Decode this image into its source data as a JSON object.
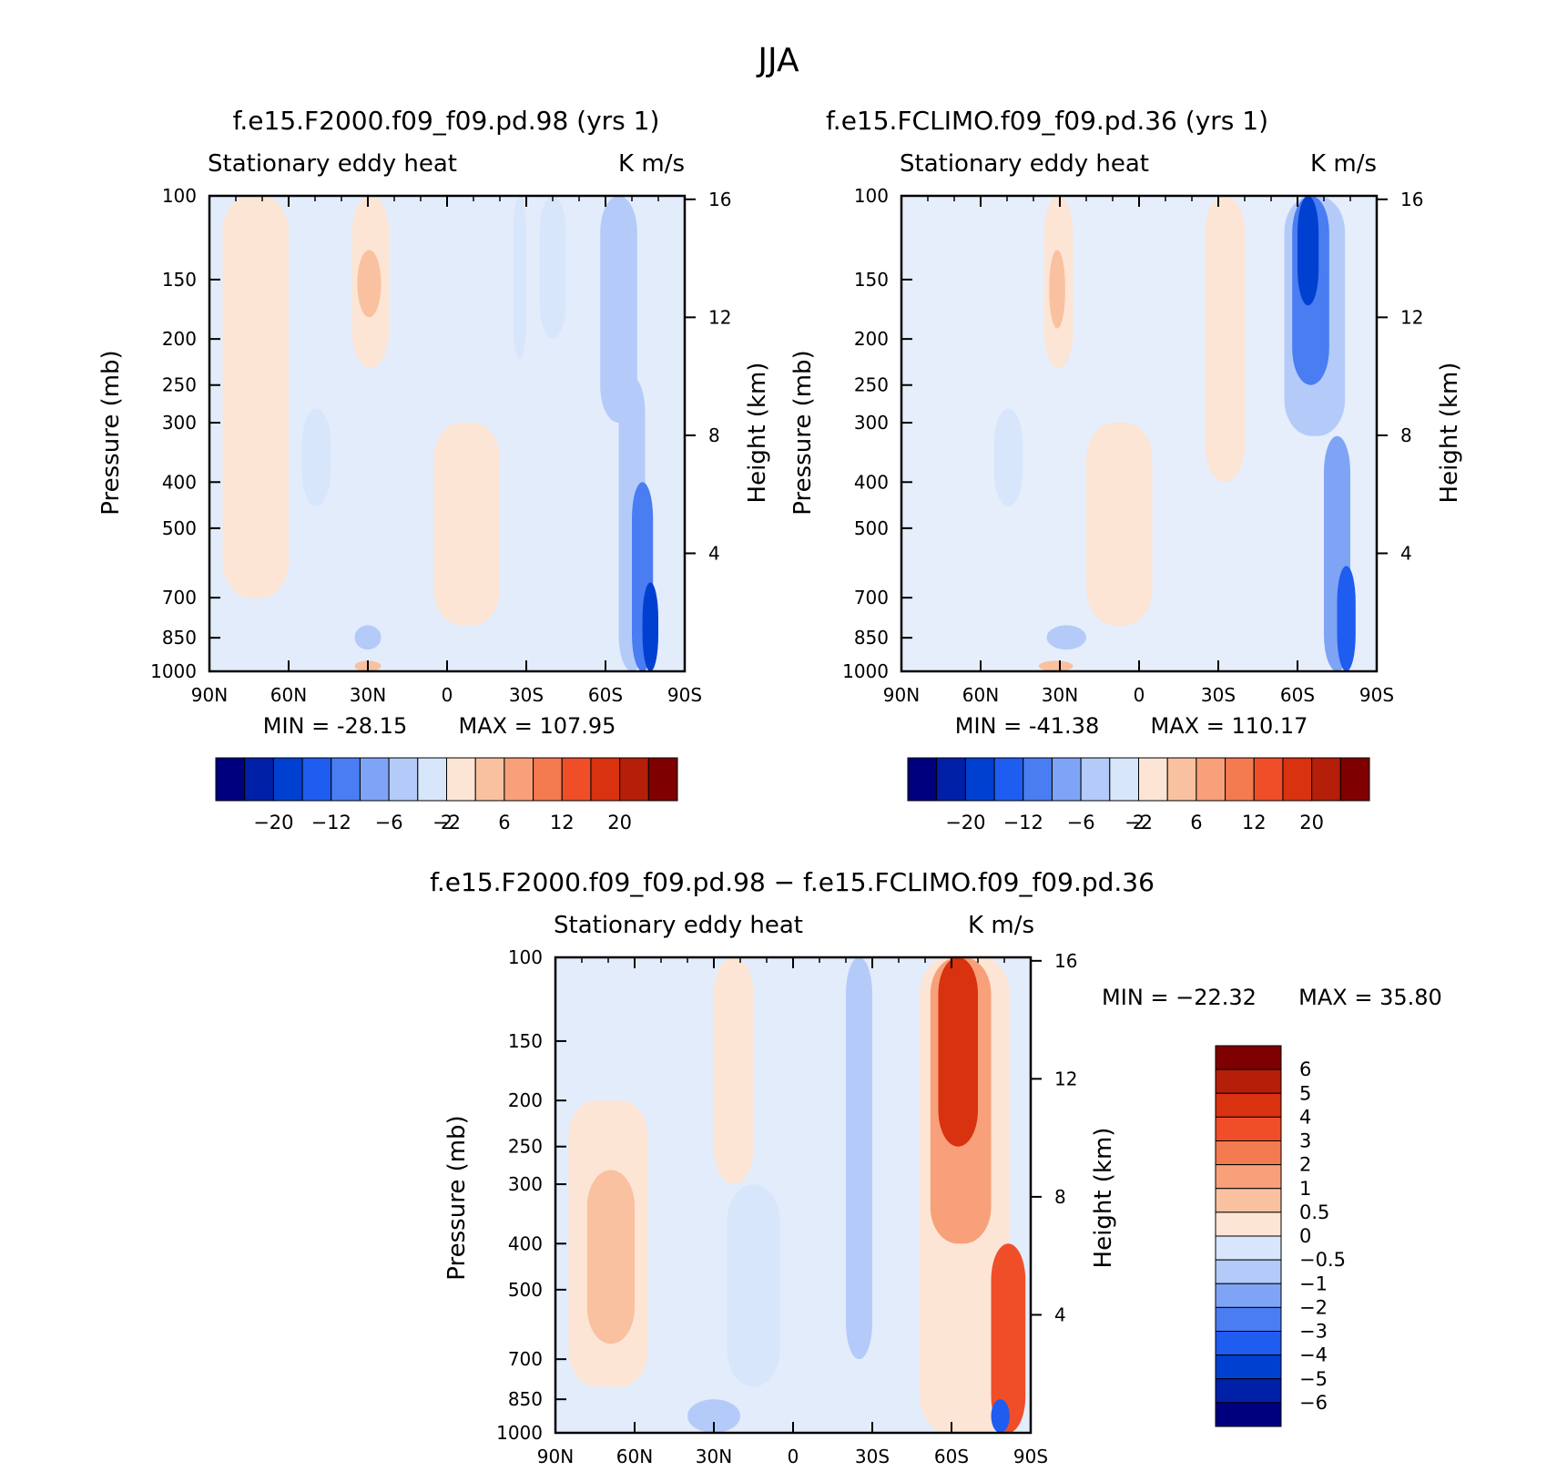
{
  "figure_title": "JJA",
  "chart_data": [
    {
      "type": "heatmap",
      "id": "panel1",
      "title": "f.e15.F2000.f09_f09.pd.98 (yrs 1)",
      "left_label": "Stationary eddy heat",
      "right_label": "K m/s",
      "ylabel": "Pressure (mb)",
      "ylabel2": "Height (km)",
      "x_ticks": [
        "90N",
        "60N",
        "30N",
        "0",
        "30S",
        "60S",
        "90S"
      ],
      "y_ticks": [
        "100",
        "150",
        "200",
        "250",
        "300",
        "400",
        "500",
        "700",
        "850",
        "1000"
      ],
      "height_ticks": [
        "16",
        "12",
        "8",
        "4"
      ],
      "min_label": "MIN = -28.15",
      "max_label": "MAX = 107.95",
      "min": -28.15,
      "max": 107.95,
      "colorbar_labels": [
        "-20",
        "-12",
        "-6",
        "-2",
        "2",
        "6",
        "12",
        "20"
      ],
      "fields": [
        {
          "lat": [
            -75,
            -65
          ],
          "p": [
            240,
            1000
          ],
          "level": -2
        },
        {
          "lat": [
            -78,
            -70
          ],
          "p": [
            400,
            1000
          ],
          "level": -4
        },
        {
          "lat": [
            -80,
            -74
          ],
          "p": [
            650,
            1000
          ],
          "level": -6
        },
        {
          "lat": [
            -72,
            -58
          ],
          "p": [
            100,
            300
          ],
          "level": -2
        },
        {
          "lat": [
            -45,
            -35
          ],
          "p": [
            100,
            200
          ],
          "level": -1
        },
        {
          "lat": [
            -30,
            -25
          ],
          "p": [
            100,
            220
          ],
          "level": -1
        },
        {
          "lat": [
            22,
            36
          ],
          "p": [
            100,
            230
          ],
          "level": 1
        },
        {
          "lat": [
            25,
            34
          ],
          "p": [
            130,
            180
          ],
          "level": 2
        },
        {
          "lat": [
            44,
            55
          ],
          "p": [
            280,
            450
          ],
          "level": -1
        },
        {
          "lat": [
            25,
            35
          ],
          "p": [
            800,
            900
          ],
          "level": -2
        },
        {
          "lat": [
            25,
            35
          ],
          "p": [
            950,
            1000
          ],
          "level": 2
        },
        {
          "lat": [
            60,
            85
          ],
          "p": [
            100,
            700
          ],
          "level": 1
        },
        {
          "lat": [
            -20,
            5
          ],
          "p": [
            300,
            800
          ],
          "level": 1
        }
      ]
    },
    {
      "type": "heatmap",
      "id": "panel2",
      "title": "f.e15.FCLIMO.f09_f09.pd.36 (yrs 1)",
      "left_label": "Stationary eddy heat",
      "right_label": "K m/s",
      "ylabel": "Pressure (mb)",
      "ylabel2": "Height (km)",
      "x_ticks": [
        "90N",
        "60N",
        "30N",
        "0",
        "30S",
        "60S",
        "90S"
      ],
      "y_ticks": [
        "100",
        "150",
        "200",
        "250",
        "300",
        "400",
        "500",
        "700",
        "850",
        "1000"
      ],
      "height_ticks": [
        "16",
        "12",
        "8",
        "4"
      ],
      "min_label": "MIN = -41.38",
      "max_label": "MAX = 110.17",
      "min": -41.38,
      "max": 110.17,
      "colorbar_labels": [
        "-20",
        "-12",
        "-6",
        "-2",
        "2",
        "6",
        "12",
        "20"
      ],
      "fields": [
        {
          "lat": [
            -78,
            -55
          ],
          "p": [
            100,
            320
          ],
          "level": -2
        },
        {
          "lat": [
            -72,
            -58
          ],
          "p": [
            100,
            250
          ],
          "level": -4
        },
        {
          "lat": [
            -68,
            -60
          ],
          "p": [
            100,
            170
          ],
          "level": -6
        },
        {
          "lat": [
            -80,
            -70
          ],
          "p": [
            320,
            1000
          ],
          "level": -3
        },
        {
          "lat": [
            -82,
            -75
          ],
          "p": [
            600,
            1000
          ],
          "level": -5
        },
        {
          "lat": [
            25,
            36
          ],
          "p": [
            100,
            230
          ],
          "level": 1
        },
        {
          "lat": [
            28,
            34
          ],
          "p": [
            130,
            190
          ],
          "level": 2
        },
        {
          "lat": [
            44,
            55
          ],
          "p": [
            280,
            450
          ],
          "level": -1
        },
        {
          "lat": [
            20,
            35
          ],
          "p": [
            800,
            900
          ],
          "level": -2
        },
        {
          "lat": [
            25,
            38
          ],
          "p": [
            950,
            1000
          ],
          "level": 2
        },
        {
          "lat": [
            -5,
            20
          ],
          "p": [
            300,
            800
          ],
          "level": 1
        },
        {
          "lat": [
            -40,
            -25
          ],
          "p": [
            100,
            400
          ],
          "level": 1
        }
      ]
    },
    {
      "type": "heatmap",
      "id": "panel3",
      "title": "f.e15.F2000.f09_f09.pd.98 − f.e15.FCLIMO.f09_f09.pd.36",
      "left_label": "Stationary eddy heat",
      "right_label": "K m/s",
      "ylabel": "Pressure (mb)",
      "ylabel2": "Height (km)",
      "x_ticks": [
        "90N",
        "60N",
        "30N",
        "0",
        "30S",
        "60S",
        "90S"
      ],
      "y_ticks": [
        "100",
        "150",
        "200",
        "250",
        "300",
        "400",
        "500",
        "700",
        "850",
        "1000"
      ],
      "height_ticks": [
        "16",
        "12",
        "8",
        "4"
      ],
      "min_label": "MIN = −22.32",
      "max_label": "MAX =   35.80",
      "min": -22.32,
      "max": 35.8,
      "colorbar_labels": [
        "6",
        "5",
        "4",
        "3",
        "2",
        "1",
        "0.5",
        "0",
        "−0.5",
        "−1",
        "−2",
        "−3",
        "−4",
        "−5",
        "−6"
      ],
      "fields": [
        {
          "lat": [
            -82,
            -48
          ],
          "p": [
            100,
            1000
          ],
          "level": 1
        },
        {
          "lat": [
            -75,
            -52
          ],
          "p": [
            100,
            400
          ],
          "level": 3
        },
        {
          "lat": [
            -70,
            -55
          ],
          "p": [
            100,
            250
          ],
          "level": 6
        },
        {
          "lat": [
            -88,
            -75
          ],
          "p": [
            400,
            1000
          ],
          "level": 5
        },
        {
          "lat": [
            -82,
            -75
          ],
          "p": [
            850,
            1000
          ],
          "level": -5
        },
        {
          "lat": [
            55,
            85
          ],
          "p": [
            200,
            800
          ],
          "level": 1
        },
        {
          "lat": [
            60,
            78
          ],
          "p": [
            280,
            650
          ],
          "level": 2
        },
        {
          "lat": [
            15,
            30
          ],
          "p": [
            100,
            300
          ],
          "level": 1
        },
        {
          "lat": [
            -30,
            -20
          ],
          "p": [
            100,
            700
          ],
          "level": -2
        },
        {
          "lat": [
            20,
            40
          ],
          "p": [
            850,
            1000
          ],
          "level": -2
        },
        {
          "lat": [
            5,
            25
          ],
          "p": [
            300,
            800
          ],
          "level": -1
        }
      ]
    }
  ],
  "colors": {
    "blues": [
      "#00007f",
      "#0020a8",
      "#0040d0",
      "#1f5cf0",
      "#4a7df2",
      "#7fa4f5",
      "#b4cbf9",
      "#d8e6fb"
    ],
    "reds": [
      "#fce5d4",
      "#f9c1a0",
      "#f7a07a",
      "#f47a50",
      "#f04e28",
      "#d83210",
      "#b51e08",
      "#7f0000"
    ]
  }
}
